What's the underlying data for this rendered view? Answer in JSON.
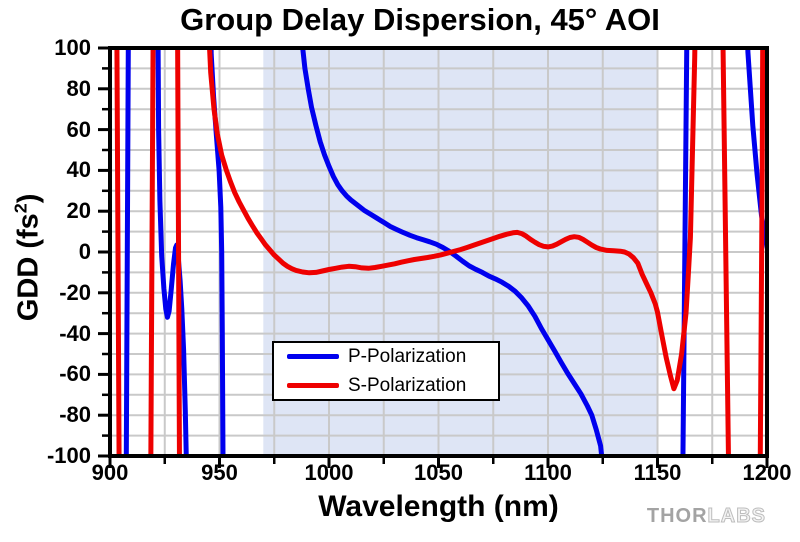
{
  "watermark": {
    "part1": "THOR",
    "part2": "LABS"
  },
  "chart_data": {
    "type": "line",
    "title": "Group Delay Dispersion, 45° AOI",
    "xlabel": "Wavelength (nm)",
    "ylabel": "GDD (fs²)",
    "ylabel_parts": {
      "prefix": "GDD (fs",
      "sup": "2",
      "suffix": ")"
    },
    "xlim": [
      900,
      1200
    ],
    "ylim": [
      -100,
      100
    ],
    "x_ticks": [
      900,
      950,
      1000,
      1050,
      1100,
      1150,
      1200
    ],
    "y_ticks": [
      100,
      80,
      60,
      40,
      20,
      0,
      -20,
      -40,
      -60,
      -80,
      -100
    ],
    "x_minor_step": 25,
    "y_minor_step": 10,
    "grid": {
      "on": true,
      "color": "#c9c9c9",
      "x_start": 925,
      "x_end": 1175,
      "x_step": 25,
      "y_start": -90,
      "y_end": 90,
      "y_step": 10
    },
    "highlight_band": {
      "x_start": 970,
      "x_end": 1150,
      "color": "#dee5f5"
    },
    "legend_position": "inside-bottom-left",
    "series": [
      {
        "name": "P-Polarization",
        "color": "#0000ee",
        "segments": [
          [
            [
              907.2,
              -150
            ],
            [
              908.6,
              150
            ]
          ],
          [
            [
              921.7,
              150
            ],
            [
              922.2,
              60
            ],
            [
              922.8,
              25
            ],
            [
              923.6,
              -2
            ],
            [
              924.6,
              -18
            ],
            [
              925.5,
              -28
            ],
            [
              926.2,
              -32
            ],
            [
              927,
              -29
            ],
            [
              928,
              -18
            ],
            [
              929,
              -6
            ],
            [
              929.9,
              2
            ],
            [
              930.5,
              3.5
            ],
            [
              931.2,
              -3
            ],
            [
              932,
              -14
            ],
            [
              932.8,
              -28
            ],
            [
              933.6,
              -48
            ],
            [
              934.4,
              -78
            ],
            [
              935,
              -110
            ],
            [
              935.3,
              -150
            ]
          ],
          [
            [
              945.5,
              150
            ],
            [
              946.2,
              97
            ],
            [
              947.3,
              76
            ],
            [
              948.6,
              57
            ],
            [
              949.8,
              40
            ],
            [
              950.6,
              22
            ],
            [
              951,
              0
            ],
            [
              951.3,
              -40
            ],
            [
              951.6,
              -100
            ],
            [
              951.8,
              -150
            ]
          ],
          [
            [
              987.4,
              130
            ],
            [
              988,
              100
            ],
            [
              989,
              90
            ],
            [
              990.5,
              80
            ],
            [
              992,
              71
            ],
            [
              994,
              62
            ],
            [
              996,
              54
            ],
            [
              998,
              47.5
            ],
            [
              1000,
              42
            ],
            [
              1002,
              37
            ],
            [
              1004,
              33
            ],
            [
              1006,
              30
            ],
            [
              1008,
              27.5
            ],
            [
              1010,
              25.5
            ],
            [
              1013,
              23
            ],
            [
              1016,
              20.5
            ],
            [
              1019,
              18.5
            ],
            [
              1022,
              16.5
            ],
            [
              1025,
              14.5
            ],
            [
              1028,
              12.5
            ],
            [
              1031,
              11
            ],
            [
              1034,
              9.5
            ],
            [
              1037,
              8.2
            ],
            [
              1040,
              7
            ],
            [
              1043,
              6
            ],
            [
              1046,
              5
            ],
            [
              1049,
              3.8
            ],
            [
              1052,
              2.2
            ],
            [
              1055,
              0.3
            ],
            [
              1058,
              -2
            ],
            [
              1061,
              -4.5
            ],
            [
              1064,
              -6.8
            ],
            [
              1067,
              -8.5
            ],
            [
              1070,
              -10
            ],
            [
              1073,
              -11.8
            ],
            [
              1076,
              -13.2
            ],
            [
              1079,
              -14.8
            ],
            [
              1082,
              -16.8
            ],
            [
              1085,
              -19.2
            ],
            [
              1088,
              -22.5
            ],
            [
              1091,
              -26.5
            ],
            [
              1094,
              -31.5
            ],
            [
              1097,
              -37.5
            ],
            [
              1100,
              -43
            ],
            [
              1103,
              -48.5
            ],
            [
              1106,
              -54
            ],
            [
              1109,
              -59.5
            ],
            [
              1112,
              -64.5
            ],
            [
              1115,
              -69.5
            ],
            [
              1118,
              -75.5
            ],
            [
              1120,
              -80
            ],
            [
              1122,
              -87
            ],
            [
              1124,
              -95
            ],
            [
              1125.5,
              -110
            ],
            [
              1126,
              -150
            ]
          ],
          [
            [
              1161.2,
              -150
            ],
            [
              1163.8,
              150
            ]
          ],
          [
            [
              1190.3,
              150
            ],
            [
              1191.3,
              98
            ],
            [
              1193.5,
              62
            ],
            [
              1195.5,
              38
            ],
            [
              1197.5,
              18
            ],
            [
              1199,
              8
            ],
            [
              1200.5,
              0
            ]
          ]
        ]
      },
      {
        "name": "S-Polarization",
        "color": "#ee0000",
        "segments": [
          [
            [
              902.9,
              150
            ],
            [
              904.4,
              -150
            ]
          ],
          [
            [
              918.4,
              -150
            ],
            [
              919.9,
              150
            ]
          ],
          [
            [
              930.7,
              150
            ],
            [
              931.9,
              -150
            ]
          ],
          [
            [
              944.3,
              150
            ],
            [
              945,
              110
            ],
            [
              946,
              88
            ],
            [
              947.5,
              70
            ],
            [
              949,
              58
            ],
            [
              951,
              47.5
            ],
            [
              953,
              40.5
            ],
            [
              955,
              34.5
            ],
            [
              957,
              29
            ],
            [
              959,
              24.5
            ],
            [
              961,
              20.5
            ],
            [
              963,
              16.5
            ],
            [
              965,
              13
            ],
            [
              967,
              9.5
            ],
            [
              969,
              6.5
            ],
            [
              971,
              3.5
            ],
            [
              973,
              1
            ],
            [
              975,
              -1.5
            ],
            [
              977,
              -3.5
            ],
            [
              979,
              -5.5
            ],
            [
              981,
              -7
            ],
            [
              983,
              -8.2
            ],
            [
              985,
              -9
            ],
            [
              988,
              -9.8
            ],
            [
              991,
              -10.2
            ],
            [
              994,
              -10
            ],
            [
              997,
              -9.3
            ],
            [
              1000,
              -8.6
            ],
            [
              1003,
              -8
            ],
            [
              1006,
              -7.4
            ],
            [
              1009,
              -7
            ],
            [
              1012,
              -7.2
            ],
            [
              1015,
              -7.8
            ],
            [
              1018,
              -8
            ],
            [
              1021,
              -7.6
            ],
            [
              1024,
              -7
            ],
            [
              1027,
              -6.4
            ],
            [
              1030,
              -5.8
            ],
            [
              1033,
              -5
            ],
            [
              1036,
              -4.3
            ],
            [
              1039,
              -3.7
            ],
            [
              1042,
              -3.2
            ],
            [
              1045,
              -2.7
            ],
            [
              1048,
              -2.1
            ],
            [
              1051,
              -1.4
            ],
            [
              1054,
              -0.6
            ],
            [
              1057,
              0.3
            ],
            [
              1060,
              1.2
            ],
            [
              1063,
              2.2
            ],
            [
              1066,
              3.3
            ],
            [
              1069,
              4.4
            ],
            [
              1072,
              5.5
            ],
            [
              1075,
              6.6
            ],
            [
              1078,
              7.7
            ],
            [
              1081,
              8.7
            ],
            [
              1084,
              9.4
            ],
            [
              1086,
              9.6
            ],
            [
              1088,
              9
            ],
            [
              1090,
              7.8
            ],
            [
              1092,
              6.2
            ],
            [
              1094,
              4.8
            ],
            [
              1096,
              3.6
            ],
            [
              1098,
              2.8
            ],
            [
              1100,
              2.5
            ],
            [
              1102,
              2.9
            ],
            [
              1104,
              3.8
            ],
            [
              1106,
              5
            ],
            [
              1108,
              6.2
            ],
            [
              1110,
              7.1
            ],
            [
              1112,
              7.5
            ],
            [
              1114,
              7.2
            ],
            [
              1116,
              6.2
            ],
            [
              1118,
              4.8
            ],
            [
              1120,
              3.4
            ],
            [
              1122,
              2.2
            ],
            [
              1124,
              1.4
            ],
            [
              1127,
              0.8
            ],
            [
              1130,
              0.6
            ],
            [
              1133,
              0.4
            ],
            [
              1135,
              0
            ],
            [
              1137,
              -1
            ],
            [
              1139,
              -2.8
            ],
            [
              1141,
              -5.5
            ],
            [
              1143,
              -11
            ],
            [
              1145,
              -15.5
            ],
            [
              1147,
              -20
            ],
            [
              1149,
              -25.5
            ],
            [
              1150,
              -29.5
            ],
            [
              1152,
              -41
            ],
            [
              1154,
              -52
            ],
            [
              1156,
              -61
            ],
            [
              1157.5,
              -67
            ],
            [
              1159,
              -63
            ],
            [
              1161,
              -50
            ],
            [
              1163,
              -30
            ],
            [
              1164,
              -12
            ],
            [
              1165,
              7
            ],
            [
              1166,
              50
            ],
            [
              1167,
              95
            ],
            [
              1167.8,
              150
            ]
          ],
          [
            [
              1179.3,
              150
            ],
            [
              1183,
              -150
            ]
          ],
          [
            [
              1198.2,
              150
            ],
            [
              1197.8,
              40
            ],
            [
              1197.3,
              -40
            ],
            [
              1196.6,
              -150
            ]
          ]
        ]
      }
    ]
  }
}
